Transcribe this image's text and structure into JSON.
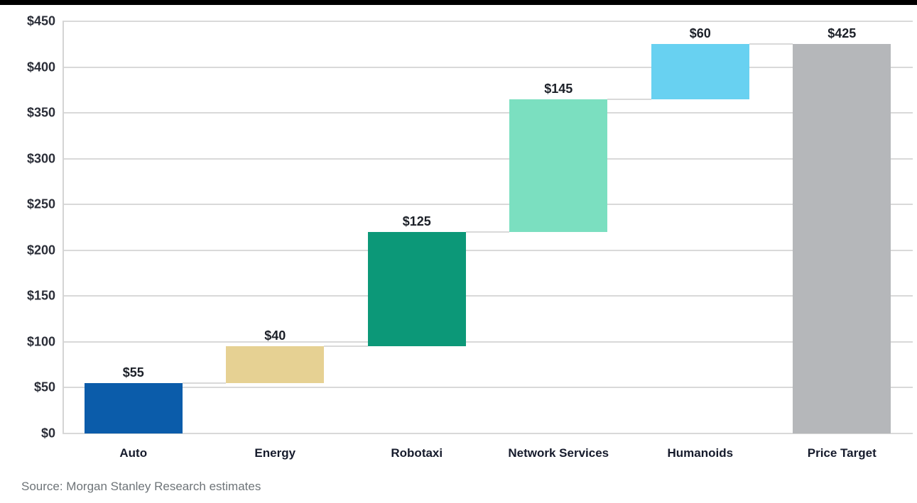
{
  "chart_data": {
    "type": "bar",
    "subtype": "waterfall",
    "title": "",
    "xlabel": "",
    "ylabel": "",
    "categories": [
      "Auto",
      "Energy",
      "Robotaxi",
      "Network Services",
      "Humanoids",
      "Price Target"
    ],
    "series": [
      {
        "name": "segment-value",
        "values": [
          55,
          40,
          125,
          145,
          60,
          425
        ]
      }
    ],
    "base_values": [
      0,
      55,
      95,
      220,
      365,
      0
    ],
    "cumulative_tops": [
      55,
      95,
      220,
      365,
      425,
      425
    ],
    "value_labels": [
      "$55",
      "$40",
      "$125",
      "$145",
      "$60",
      "$425"
    ],
    "bar_colors": [
      "#0b5caa",
      "#e6d193",
      "#0c9878",
      "#7bdfc0",
      "#68d1f1",
      "#b5b7ba"
    ],
    "ylim": [
      0,
      450
    ],
    "ytick_step": 50,
    "ytick_labels": [
      "$0",
      "$50",
      "$100",
      "$150",
      "$200",
      "$250",
      "$300",
      "$350",
      "$400",
      "$450"
    ],
    "grid": true,
    "legend": "none",
    "gridline_color": "#d9d9d9",
    "connector_color": "#d9d9d9"
  },
  "source_note": "Source: Morgan Stanley Research estimates"
}
